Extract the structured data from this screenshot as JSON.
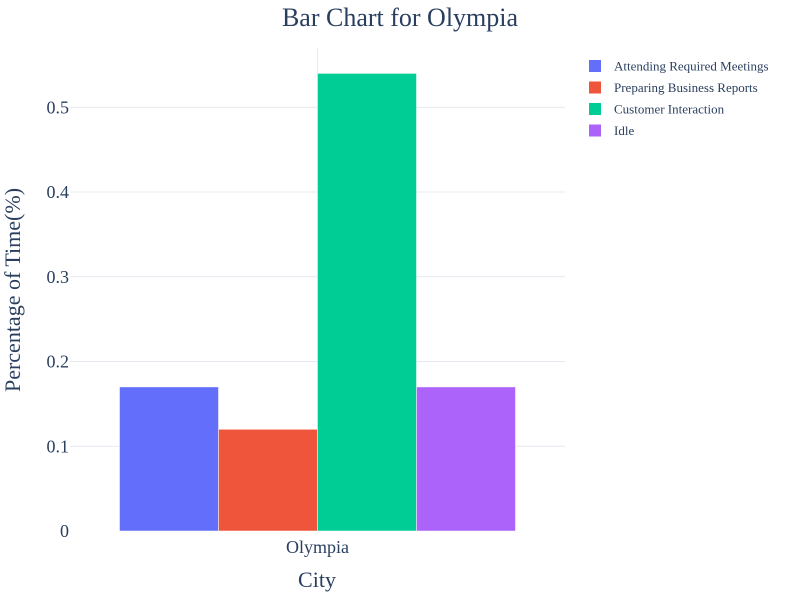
{
  "chart_data": {
    "type": "bar",
    "title": "Bar Chart for Olympia",
    "xlabel": "City",
    "ylabel": "Percentage of Time(%)",
    "categories": [
      "Olympia"
    ],
    "series": [
      {
        "name": "Attending Required Meetings",
        "color": "#636efa",
        "values": [
          0.17
        ]
      },
      {
        "name": "Preparing Business Reports",
        "color": "#ef553b",
        "values": [
          0.12
        ]
      },
      {
        "name": "Customer Interaction",
        "color": "#00cc96",
        "values": [
          0.54
        ]
      },
      {
        "name": "Idle",
        "color": "#ab63fa",
        "values": [
          0.17
        ]
      }
    ],
    "ylim": [
      0,
      0.57
    ],
    "yticks": [
      0,
      0.1,
      0.2,
      0.3,
      0.4,
      0.5
    ],
    "ytick_labels": [
      "0",
      "0.1",
      "0.2",
      "0.3",
      "0.4",
      "0.5"
    ],
    "grid": true,
    "legend_position": "top-right"
  }
}
